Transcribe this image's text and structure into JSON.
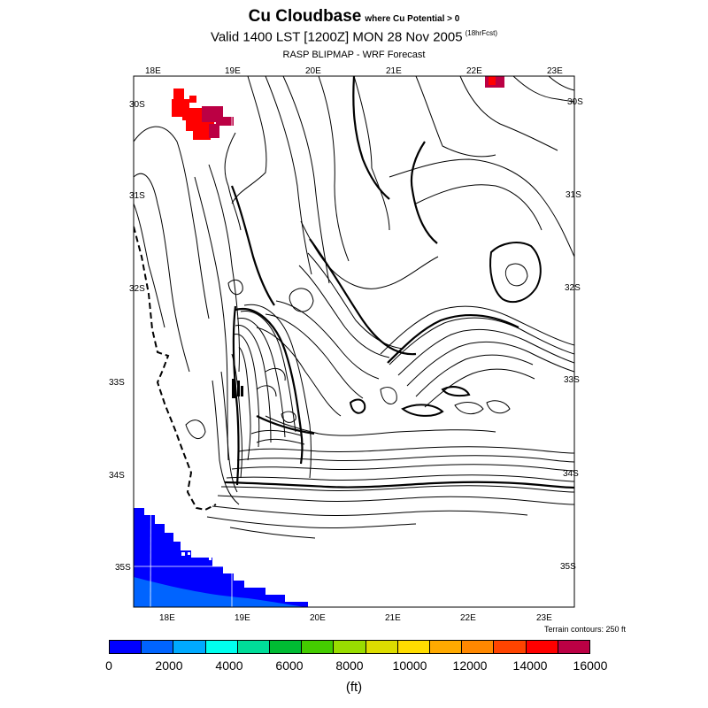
{
  "header": {
    "title": "Cu Cloudbase",
    "title_suffix": "where Cu Potential > 0",
    "valid": "Valid 1400 LST [1200Z] MON 28 Nov 2005",
    "forecast_tag": "(18hrFcst)",
    "source": "RASP BLIPMAP - WRF Forecast"
  },
  "map": {
    "top_lon_labels": [
      "18E",
      "19E",
      "20E",
      "21E",
      "22E",
      "23E"
    ],
    "bottom_lon_labels": [
      "18E",
      "19E",
      "20E",
      "21E",
      "22E",
      "23E"
    ],
    "left_lat_labels": [
      "30S",
      "31S",
      "32S",
      "33S",
      "34S",
      "35S"
    ],
    "right_lat_labels": [
      "30S",
      "31S",
      "32S",
      "33S",
      "34S",
      "35S"
    ],
    "terrain_note": "Terrain contours: 250 ft"
  },
  "colorbar": {
    "colors": [
      "#0000ff",
      "#0064ff",
      "#00aaff",
      "#00ffee",
      "#00dd99",
      "#00bb33",
      "#44cc00",
      "#99dd00",
      "#dddd00",
      "#ffdd00",
      "#ffaa00",
      "#ff8800",
      "#ff4400",
      "#ff0000",
      "#bb0044"
    ],
    "ticks": [
      "0",
      "2000",
      "4000",
      "6000",
      "8000",
      "10000",
      "12000",
      "14000",
      "16000"
    ],
    "units": "(ft)"
  }
}
